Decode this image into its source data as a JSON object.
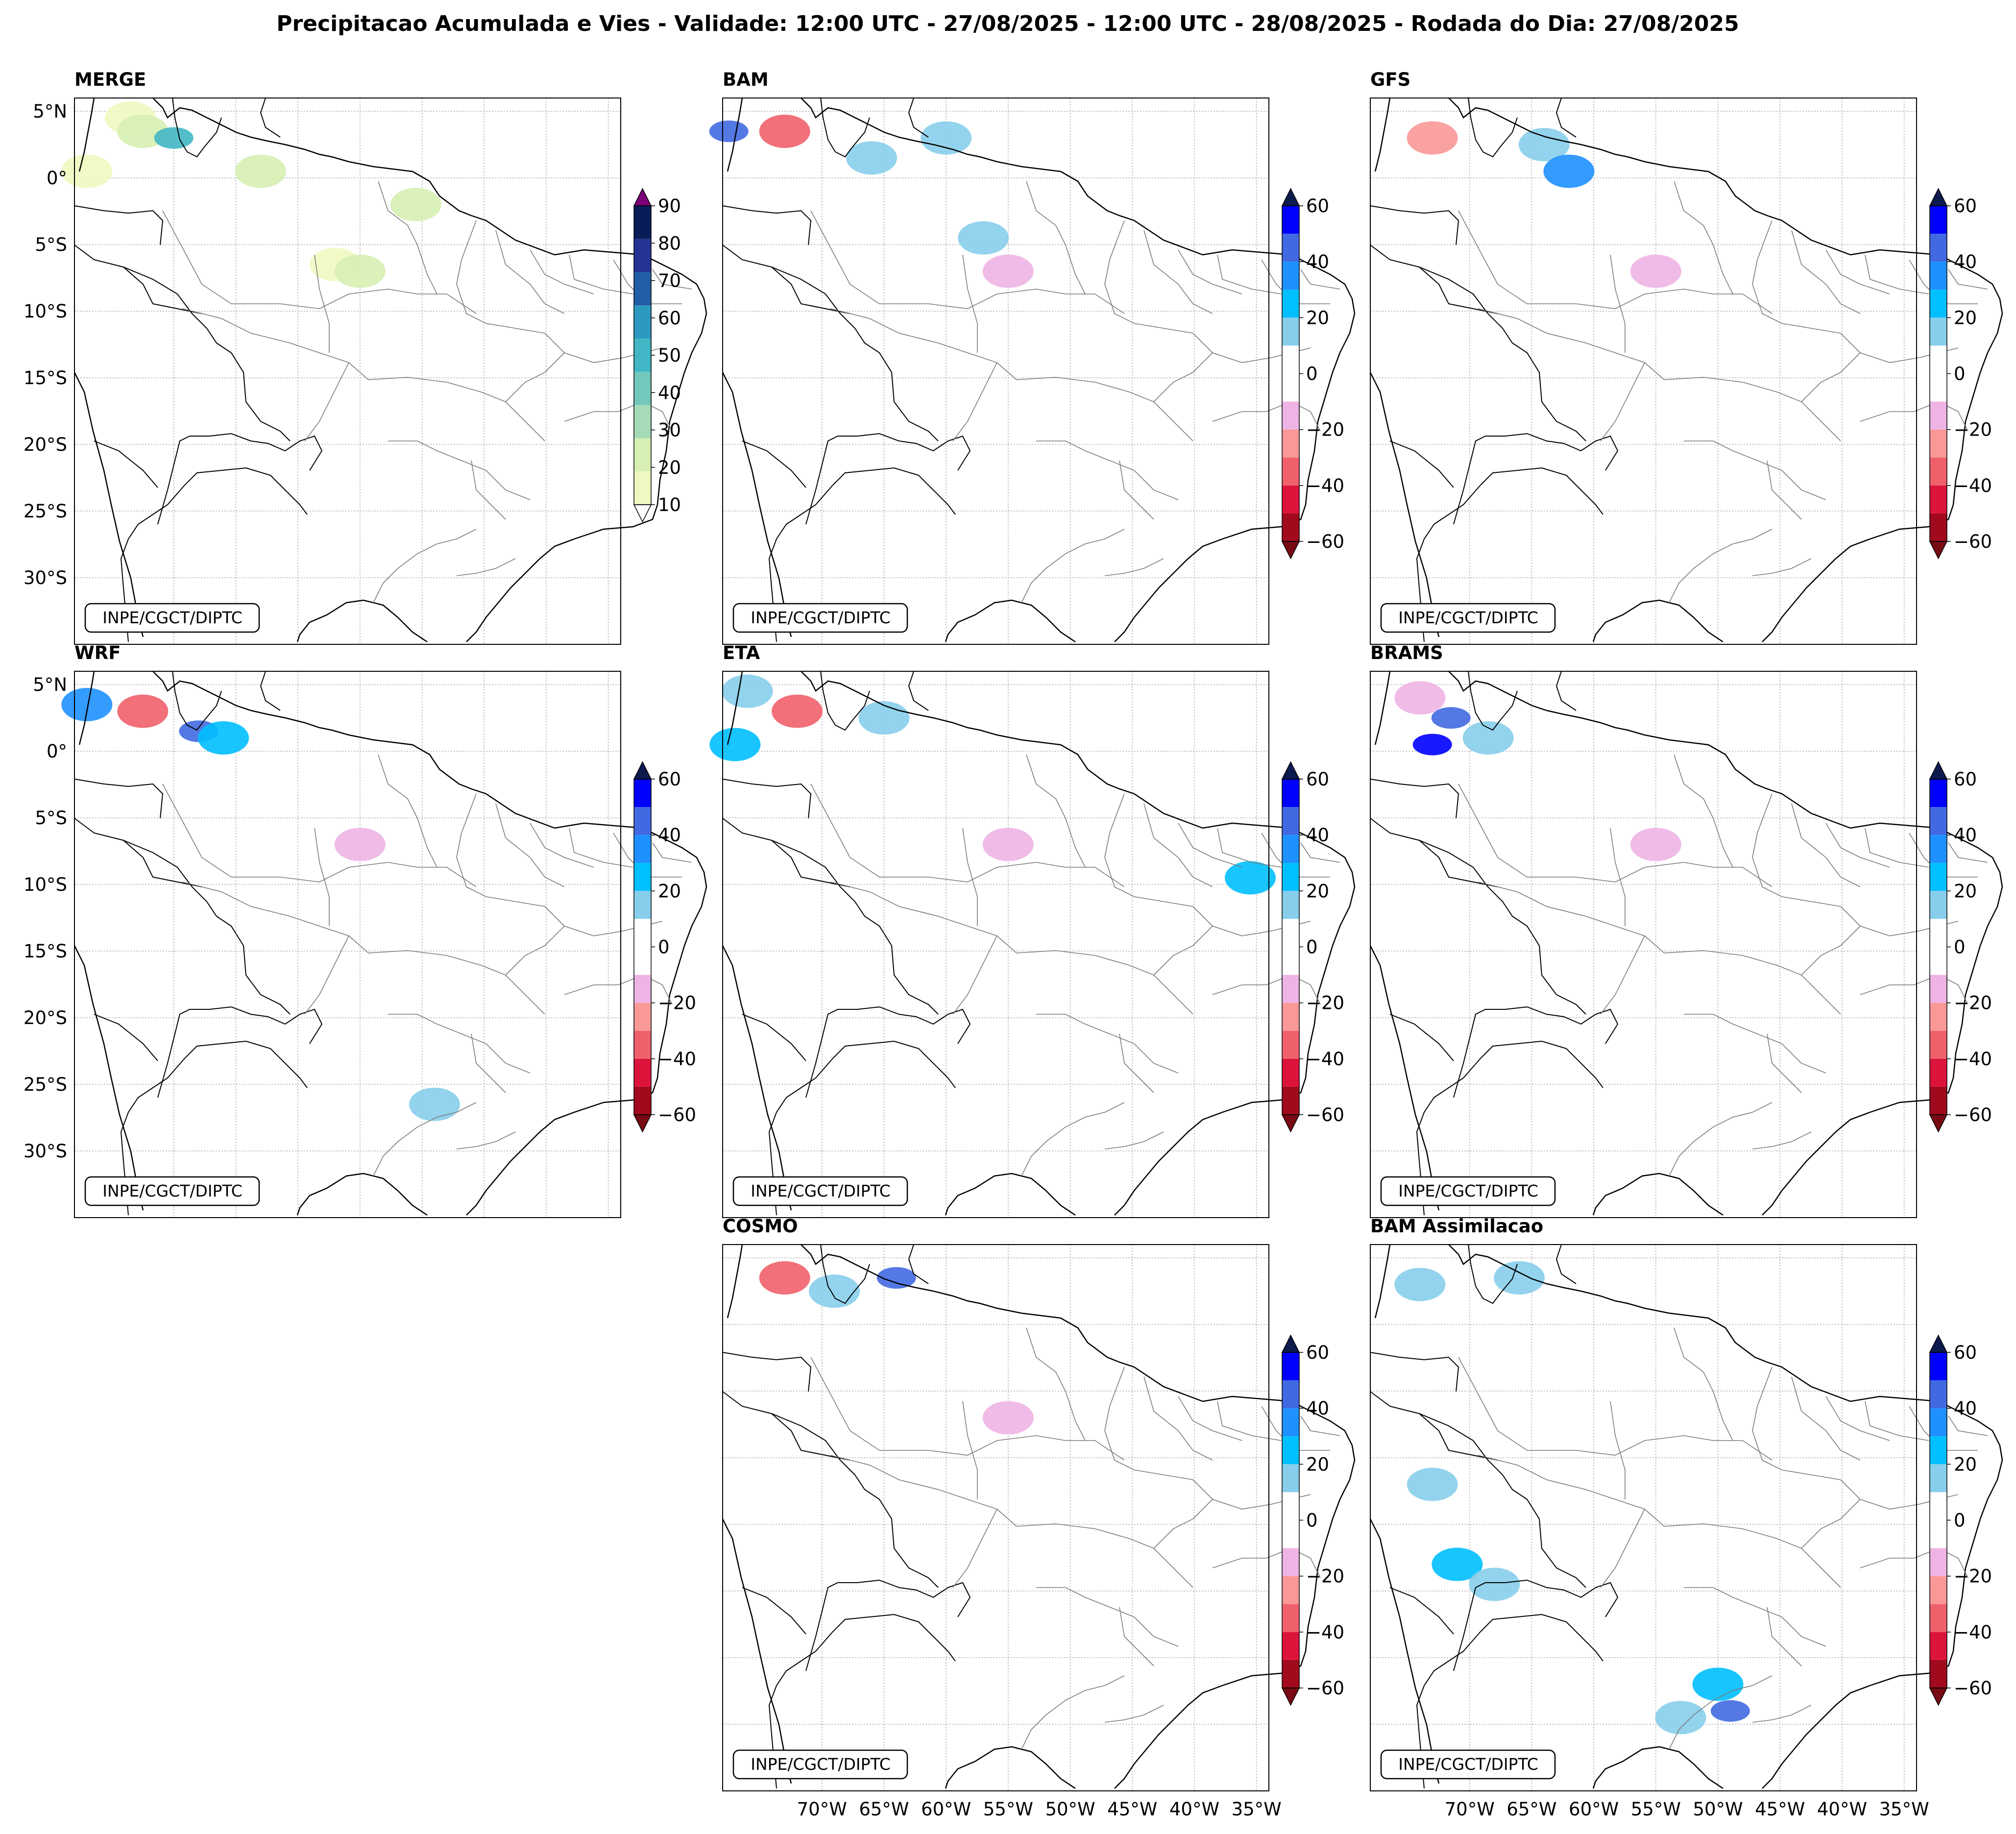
{
  "figure_title": "Precipitacao Acumulada e Vies - Validade: 12:00 UTC - 27/08/2025 - 12:00 UTC - 28/08/2025 - Rodada do Dia: 27/08/2025",
  "credit": "INPE/CGCT/DIPTC",
  "lat_ticks": [
    "5°N",
    "0°",
    "5°S",
    "10°S",
    "15°S",
    "20°S",
    "25°S",
    "30°S"
  ],
  "lon_ticks": [
    "70°W",
    "65°W",
    "60°W",
    "55°W",
    "50°W",
    "45°W",
    "40°W",
    "35°W"
  ],
  "panels": [
    {
      "id": "merge",
      "title": "MERGE",
      "colorbar": "precip"
    },
    {
      "id": "bam",
      "title": "BAM",
      "colorbar": "bias"
    },
    {
      "id": "gfs",
      "title": "GFS",
      "colorbar": "bias"
    },
    {
      "id": "wrf",
      "title": "WRF",
      "colorbar": "bias"
    },
    {
      "id": "eta",
      "title": "ETA",
      "colorbar": "bias"
    },
    {
      "id": "brams",
      "title": "BRAMS",
      "colorbar": "bias"
    },
    {
      "id": "cosmo",
      "title": "COSMO",
      "colorbar": "bias"
    },
    {
      "id": "bam_assim",
      "title": "BAM Assimilacao",
      "colorbar": "bias"
    }
  ],
  "colorbars": {
    "precip": {
      "tick_labels": [
        "10",
        "20",
        "30",
        "40",
        "50",
        "60",
        "70",
        "80",
        "90"
      ],
      "colors": [
        "#eff8c0",
        "#d6efb3",
        "#a6dbb8",
        "#73c8bc",
        "#41b6c4",
        "#2c9ac0",
        "#225ea8",
        "#253494",
        "#081d58"
      ],
      "under_color": "#ffffff",
      "over_color": "#7a0177"
    },
    "bias": {
      "tick_labels": [
        "60",
        "40",
        "20",
        "0",
        "−20",
        "−40",
        "−60"
      ],
      "colors_top_to_bottom": [
        "#0000ff",
        "#4169e1",
        "#1e90ff",
        "#00bfff",
        "#87ceeb",
        "#ffffff",
        "#ffffff",
        "#eeb4e4",
        "#fa9898",
        "#f0606a",
        "#dc143c",
        "#a00a1c"
      ],
      "over_color": "#0d1a4d",
      "under_color": "#780a14"
    }
  },
  "chart_data": {
    "type": "map",
    "projection": "plate carree",
    "lon_range": [
      -78,
      -34
    ],
    "lat_range": [
      -35,
      6
    ],
    "gridline_lons": [
      -70,
      -65,
      -60,
      -55,
      -50,
      -45,
      -40,
      -35
    ],
    "gridline_lats": [
      5,
      0,
      -5,
      -10,
      -15,
      -20,
      -25,
      -30
    ],
    "panels": [
      {
        "title": "MERGE",
        "field": "accumulated precipitation",
        "levels": [
          10,
          20,
          30,
          40,
          50,
          60,
          70,
          80,
          90
        ],
        "features": [
          {
            "lon": -73.5,
            "lat": 4.5,
            "value": 15
          },
          {
            "lon": -72.5,
            "lat": 3.5,
            "value": 25
          },
          {
            "lon": -70,
            "lat": 3,
            "value": 50
          },
          {
            "lon": -77,
            "lat": 0.5,
            "value": 15
          },
          {
            "lon": -63,
            "lat": 0.5,
            "value": 25
          },
          {
            "lon": -50.5,
            "lat": -2,
            "value": 20
          },
          {
            "lon": -57,
            "lat": -6.5,
            "value": 15
          },
          {
            "lon": -55,
            "lat": -7,
            "value": 20
          }
        ]
      },
      {
        "title": "BAM",
        "field": "bias",
        "levels": [
          -60,
          -50,
          -40,
          -30,
          -20,
          -10,
          0,
          10,
          20,
          30,
          40,
          50,
          60
        ],
        "features": [
          {
            "lon": -77.5,
            "lat": 3.5,
            "value": 45
          },
          {
            "lon": -73,
            "lat": 3.5,
            "value": -35
          },
          {
            "lon": -66,
            "lat": 1.5,
            "value": 15
          },
          {
            "lon": -60,
            "lat": 3,
            "value": 15
          },
          {
            "lon": -57,
            "lat": -4.5,
            "value": 15
          },
          {
            "lon": -55,
            "lat": -7,
            "value": -15
          }
        ]
      },
      {
        "title": "GFS",
        "field": "bias",
        "levels": [
          -60,
          -50,
          -40,
          -30,
          -20,
          -10,
          0,
          10,
          20,
          30,
          40,
          50,
          60
        ],
        "features": [
          {
            "lon": -64,
            "lat": 2.5,
            "value": 15
          },
          {
            "lon": -62,
            "lat": 0.5,
            "value": 35
          },
          {
            "lon": -73,
            "lat": 3,
            "value": -25
          },
          {
            "lon": -55,
            "lat": -7,
            "value": -15
          }
        ]
      },
      {
        "title": "WRF",
        "field": "bias",
        "levels": [
          -60,
          -50,
          -40,
          -30,
          -20,
          -10,
          0,
          10,
          20,
          30,
          40,
          50,
          60
        ],
        "features": [
          {
            "lon": -77,
            "lat": 3.5,
            "value": 35
          },
          {
            "lon": -72.5,
            "lat": 3,
            "value": -35
          },
          {
            "lon": -68,
            "lat": 1.5,
            "value": 45
          },
          {
            "lon": -66,
            "lat": 1,
            "value": 25
          },
          {
            "lon": -55,
            "lat": -7,
            "value": -15
          },
          {
            "lon": -49,
            "lat": -26.5,
            "value": 15
          }
        ]
      },
      {
        "title": "ETA",
        "field": "bias",
        "levels": [
          -60,
          -50,
          -40,
          -30,
          -20,
          -10,
          0,
          10,
          20,
          30,
          40,
          50,
          60
        ],
        "features": [
          {
            "lon": -76,
            "lat": 4.5,
            "value": 15
          },
          {
            "lon": -77,
            "lat": 0.5,
            "value": 30
          },
          {
            "lon": -72,
            "lat": 3,
            "value": -35
          },
          {
            "lon": -65,
            "lat": 2.5,
            "value": 15
          },
          {
            "lon": -55,
            "lat": -7,
            "value": -15
          },
          {
            "lon": -35.5,
            "lat": -9.5,
            "value": 25
          }
        ]
      },
      {
        "title": "BRAMS",
        "field": "bias",
        "levels": [
          -60,
          -50,
          -40,
          -30,
          -20,
          -10,
          0,
          10,
          20,
          30,
          40,
          50,
          60
        ],
        "features": [
          {
            "lon": -74,
            "lat": 4,
            "value": -15
          },
          {
            "lon": -71.5,
            "lat": 2.5,
            "value": 45
          },
          {
            "lon": -73,
            "lat": 0.5,
            "value": 55
          },
          {
            "lon": -68.5,
            "lat": 1,
            "value": 15
          },
          {
            "lon": -55,
            "lat": -7,
            "value": -15
          }
        ]
      },
      {
        "title": "COSMO",
        "field": "bias",
        "levels": [
          -60,
          -50,
          -40,
          -30,
          -20,
          -10,
          0,
          10,
          20,
          30,
          40,
          50,
          60
        ],
        "features": [
          {
            "lon": -73,
            "lat": 3.5,
            "value": -30
          },
          {
            "lon": -69,
            "lat": 2.5,
            "value": 15
          },
          {
            "lon": -64,
            "lat": 3.5,
            "value": 45
          },
          {
            "lon": -55,
            "lat": -7,
            "value": -15
          }
        ]
      },
      {
        "title": "BAM Assimilacao",
        "field": "bias",
        "levels": [
          -60,
          -50,
          -40,
          -30,
          -20,
          -10,
          0,
          10,
          20,
          30,
          40,
          50,
          60
        ],
        "features": [
          {
            "lon": -74,
            "lat": 3,
            "value": 15
          },
          {
            "lon": -66,
            "lat": 3.5,
            "value": 15
          },
          {
            "lon": -73,
            "lat": -12,
            "value": 15
          },
          {
            "lon": -71,
            "lat": -18,
            "value": 25
          },
          {
            "lon": -68,
            "lat": -19.5,
            "value": 15
          },
          {
            "lon": -50,
            "lat": -27,
            "value": 30
          },
          {
            "lon": -49,
            "lat": -29,
            "value": 50
          },
          {
            "lon": -53,
            "lat": -29.5,
            "value": 15
          }
        ]
      }
    ]
  }
}
